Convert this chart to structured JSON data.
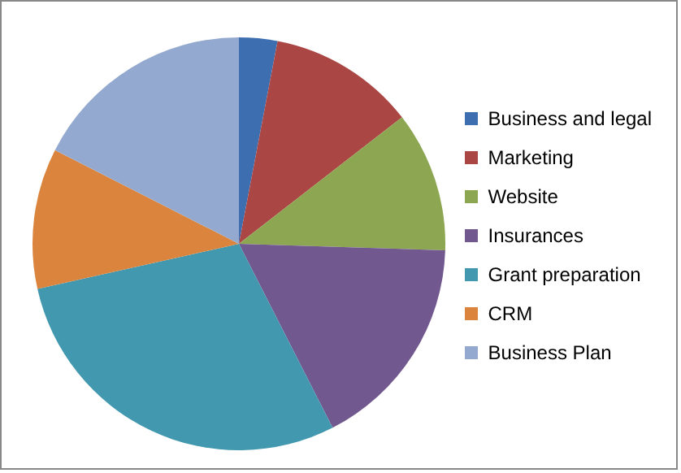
{
  "chart_data": {
    "type": "pie",
    "categories": [
      "Business and legal",
      "Marketing",
      "Website",
      "Insurances",
      "Grant preparation",
      "CRM",
      "Business Plan"
    ],
    "values": [
      3,
      11.5,
      11,
      17,
      29,
      11,
      17.5
    ],
    "colors": [
      "#3c6eb0",
      "#aa4644",
      "#8ca652",
      "#71588f",
      "#4198af",
      "#db843d",
      "#93a9cf"
    ],
    "legend": "right"
  }
}
